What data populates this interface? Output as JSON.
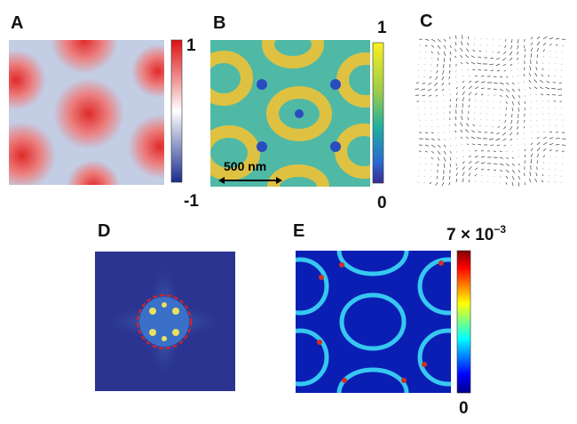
{
  "panels": [
    {
      "label": "A",
      "colorbar": {
        "max": "1",
        "min": "-1"
      }
    },
    {
      "label": "B",
      "colorbar": {
        "max": "1",
        "min": "0"
      },
      "scale_bar": "500 nm"
    },
    {
      "label": "C"
    },
    {
      "label": "D"
    },
    {
      "label": "E",
      "colorbar": {
        "max": {
          "mantissa": "7 × 10",
          "exponent": "−3"
        },
        "min": "0"
      }
    }
  ]
}
